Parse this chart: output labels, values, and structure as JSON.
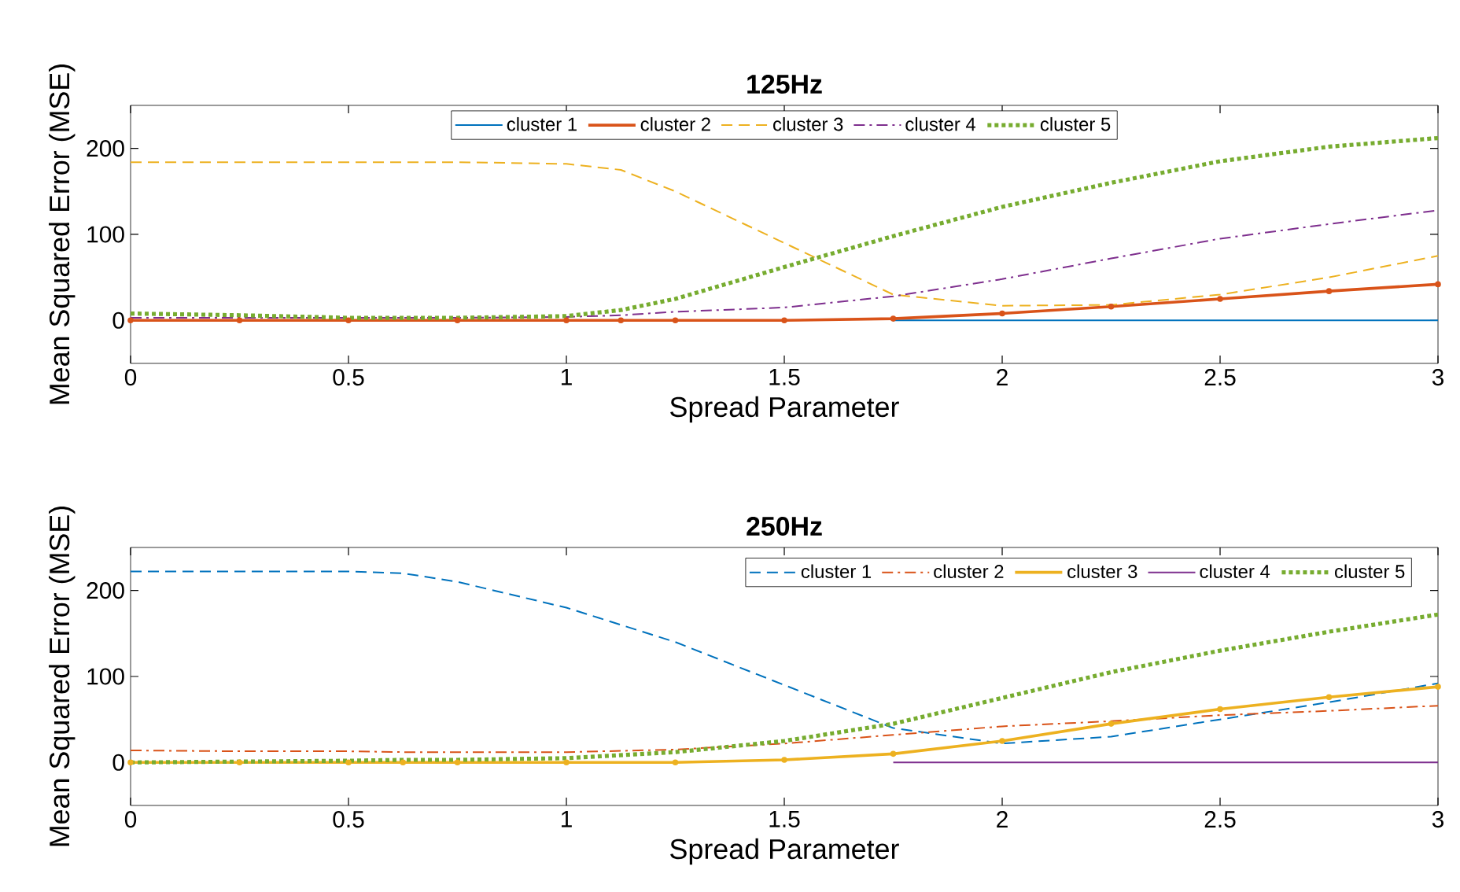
{
  "chart_data": [
    {
      "type": "line",
      "title": "125Hz",
      "xlabel": "Spread Parameter",
      "ylabel": "Mean Squared Error (MSE)",
      "xlim": [
        0,
        3
      ],
      "ylim": [
        -50,
        250
      ],
      "xticks": [
        0,
        0.5,
        1,
        1.5,
        2,
        2.5,
        3
      ],
      "yticks": [
        0,
        100,
        200
      ],
      "grid": false,
      "legend": "top",
      "x": [
        0,
        0.25,
        0.5,
        0.75,
        1,
        1.125,
        1.25,
        1.5,
        1.75,
        2,
        2.25,
        2.5,
        2.75,
        3
      ],
      "series": [
        {
          "name": "cluster 1",
          "color": "#0072bd",
          "line_style": "solid",
          "marker": "none",
          "values": [
            null,
            null,
            null,
            null,
            null,
            null,
            null,
            null,
            0,
            0,
            0,
            0,
            0,
            0
          ]
        },
        {
          "name": "cluster 2",
          "color": "#d95319",
          "line_style": "solid",
          "marker": "circle",
          "values": [
            0,
            0,
            0,
            0,
            0,
            0,
            0,
            0,
            2,
            8,
            16,
            25,
            34,
            42
          ]
        },
        {
          "name": "cluster 3",
          "color": "#edb120",
          "line_style": "dashed",
          "marker": "none",
          "values": [
            184,
            184,
            184,
            184,
            182,
            175,
            150,
            90,
            30,
            17,
            18,
            30,
            50,
            75
          ]
        },
        {
          "name": "cluster 4",
          "color": "#7e2f8e",
          "line_style": "dashdot",
          "marker": "none",
          "values": [
            3,
            3,
            3,
            3,
            4,
            6,
            10,
            15,
            28,
            48,
            72,
            95,
            112,
            128
          ]
        },
        {
          "name": "cluster 5",
          "color": "#77ac30",
          "line_style": "dotted",
          "marker": "none",
          "values": [
            8,
            6,
            3,
            3,
            5,
            12,
            25,
            62,
            98,
            132,
            160,
            185,
            202,
            212
          ]
        }
      ]
    },
    {
      "type": "line",
      "title": "250Hz",
      "xlabel": "Spread Parameter",
      "ylabel": "Mean Squared Error (MSE)",
      "xlim": [
        0,
        3
      ],
      "ylim": [
        -50,
        250
      ],
      "xticks": [
        0,
        0.5,
        1,
        1.5,
        2,
        2.5,
        3
      ],
      "yticks": [
        0,
        100,
        200
      ],
      "grid": false,
      "legend": "top right",
      "x": [
        0,
        0.25,
        0.5,
        0.625,
        0.75,
        1,
        1.25,
        1.5,
        1.75,
        2,
        2.25,
        2.5,
        2.75,
        3
      ],
      "series": [
        {
          "name": "cluster 1",
          "color": "#0072bd",
          "line_style": "dashed",
          "marker": "none",
          "values": [
            222,
            222,
            222,
            220,
            210,
            180,
            140,
            90,
            40,
            22,
            30,
            50,
            70,
            92
          ]
        },
        {
          "name": "cluster 2",
          "color": "#d95319",
          "line_style": "dashdot",
          "marker": "none",
          "values": [
            14,
            13,
            13,
            12,
            12,
            12,
            15,
            22,
            32,
            42,
            48,
            55,
            60,
            66
          ]
        },
        {
          "name": "cluster 3",
          "color": "#edb120",
          "line_style": "solid",
          "marker": "circle",
          "values": [
            0,
            0,
            0,
            0,
            0,
            0,
            0,
            3,
            10,
            25,
            45,
            62,
            76,
            88
          ]
        },
        {
          "name": "cluster 4",
          "color": "#7e2f8e",
          "line_style": "solid",
          "marker": "none",
          "values": [
            null,
            null,
            null,
            null,
            null,
            null,
            null,
            null,
            0,
            0,
            0,
            0,
            0,
            0
          ]
        },
        {
          "name": "cluster 5",
          "color": "#77ac30",
          "line_style": "dotted",
          "marker": "none",
          "values": [
            0,
            1,
            2,
            3,
            3,
            5,
            12,
            25,
            45,
            75,
            105,
            130,
            152,
            172
          ]
        }
      ]
    }
  ]
}
